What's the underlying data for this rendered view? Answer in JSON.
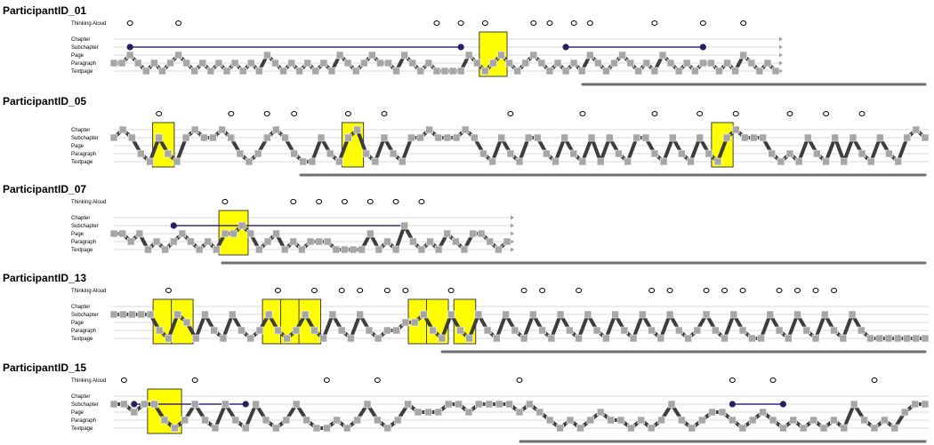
{
  "chart_data": {
    "type": "line",
    "levels": [
      "Thinking Aloud",
      "Chapter",
      "Subchapter",
      "Page",
      "Paragraph",
      "Textpage"
    ],
    "participants": [
      {
        "id": "ParticipantID_01",
        "levels": [
          "Thinking Aloud",
          "Chapter",
          "Subchapter",
          "Page",
          "Paragraph",
          "Textpage"
        ],
        "sequence": [
          3,
          3,
          2,
          3,
          4,
          3,
          4,
          3,
          2,
          3,
          4,
          3,
          4,
          3,
          4,
          3,
          4,
          3,
          4,
          2,
          3,
          4,
          3,
          4,
          3,
          4,
          3,
          4,
          2,
          3,
          4,
          3,
          2,
          3,
          3,
          4,
          2,
          3,
          4,
          3,
          4,
          4,
          4,
          4,
          2,
          3,
          4,
          3,
          2,
          3,
          4,
          3,
          2,
          3,
          4,
          3,
          4,
          3,
          4,
          2,
          3,
          4,
          3,
          2,
          3,
          4,
          3,
          4,
          2,
          3,
          4,
          3,
          4,
          3,
          3,
          4,
          3,
          4,
          2,
          3,
          4,
          3,
          4
        ],
        "highlights": [
          [
            46,
            48
          ]
        ],
        "markers": [
          1,
          2
        ],
        "thinking_aloud_events": [
          2,
          8,
          40,
          43,
          46,
          52,
          54,
          57,
          59,
          67,
          73,
          78
        ],
        "subchapter_spans": [
          [
            2,
            43
          ],
          [
            56,
            73
          ]
        ]
      },
      {
        "id": "ParticipantID_05",
        "levels": [
          "Chapter",
          "Subchapter",
          "Page",
          "Paragraph",
          "Textpage"
        ],
        "sequence": [
          1,
          0,
          1,
          3,
          4,
          1,
          3,
          4,
          1,
          0,
          1,
          1,
          0,
          1,
          3,
          4,
          3,
          1,
          0,
          1,
          3,
          4,
          4,
          1,
          3,
          4,
          1,
          0,
          3,
          4,
          1,
          3,
          4,
          1,
          1,
          0,
          1,
          1,
          1,
          0,
          1,
          3,
          4,
          1,
          3,
          4,
          1,
          1,
          3,
          4,
          1,
          3,
          4,
          1,
          4,
          1,
          3,
          4,
          1,
          1,
          3,
          4,
          1,
          3,
          4,
          1,
          3,
          4,
          1,
          0,
          1,
          1,
          1,
          3,
          4,
          3,
          4,
          1,
          3,
          4,
          1,
          4,
          1,
          3,
          4,
          1,
          3,
          4,
          1,
          0,
          1
        ],
        "highlights": [
          [
            5,
            6
          ],
          [
            26,
            27
          ],
          [
            67,
            68
          ]
        ],
        "markers": [
          0
        ],
        "thinking_aloud_events": [
          5,
          13,
          17,
          20,
          26,
          30,
          44,
          52,
          60,
          65,
          69,
          75,
          79,
          83
        ],
        "subchapter_spans": []
      },
      {
        "id": "ParticipantID_07",
        "levels": [
          "Thinking Aloud",
          "Chapter",
          "Subchapter",
          "Page",
          "Paragraph",
          "Textpage"
        ],
        "sequence": [
          2,
          2,
          3,
          2,
          4,
          3,
          4,
          3,
          2,
          3,
          4,
          3,
          4,
          2,
          2,
          1,
          2,
          4,
          3,
          2,
          4,
          3,
          4,
          3,
          3,
          3,
          4,
          4,
          4,
          4,
          2,
          4,
          3,
          4,
          1,
          3,
          4,
          3,
          4,
          2,
          3,
          4,
          2,
          2,
          3,
          4,
          3
        ],
        "highlights": [
          [
            13,
            15
          ]
        ],
        "markers": [],
        "thinking_aloud_events": [
          13,
          21,
          24,
          27,
          30,
          33,
          36
        ],
        "subchapter_spans": [
          [
            7,
            34
          ]
        ]
      },
      {
        "id": "ParticipantID_13",
        "levels": [
          "Thinking Aloud",
          "Chapter",
          "Subchapter",
          "Page",
          "Paragraph",
          "Textpage"
        ],
        "sequence": [
          1,
          1,
          1,
          1,
          1,
          3,
          4,
          1,
          2,
          4,
          1,
          3,
          4,
          1,
          3,
          4,
          3,
          1,
          3,
          4,
          3,
          1,
          3,
          4,
          1,
          3,
          4,
          1,
          3,
          4,
          3,
          3,
          2,
          2,
          1,
          3,
          4,
          1,
          3,
          4,
          1,
          3,
          4,
          1,
          3,
          4,
          1,
          3,
          4,
          1,
          3,
          4,
          1,
          3,
          4,
          1,
          3,
          4,
          1,
          3,
          4,
          1,
          3,
          4,
          3,
          1,
          3,
          4,
          1,
          3,
          4,
          4,
          1,
          3,
          4,
          1,
          3,
          4,
          1,
          3,
          4,
          1,
          3,
          4,
          4,
          4,
          4,
          4,
          4,
          4
        ],
        "highlights": [
          [
            5,
            6
          ],
          [
            7,
            8
          ],
          [
            17,
            18
          ],
          [
            19,
            20
          ],
          [
            21,
            22
          ],
          [
            33,
            34
          ],
          [
            35,
            36
          ],
          [
            38,
            39
          ]
        ],
        "markers": [],
        "thinking_aloud_events": [
          6,
          18,
          22,
          25,
          27,
          30,
          32,
          37,
          45,
          47,
          51,
          59,
          61,
          65,
          67,
          69,
          73,
          75,
          77,
          79
        ],
        "subchapter_spans": []
      },
      {
        "id": "ParticipantID_15",
        "levels": [
          "Thinking Aloud",
          "Chapter",
          "Subchapter",
          "Page",
          "Paragraph",
          "Textpage"
        ],
        "sequence": [
          1,
          1,
          2,
          1,
          1,
          3,
          4,
          3,
          1,
          3,
          4,
          1,
          3,
          4,
          1,
          3,
          4,
          3,
          1,
          3,
          4,
          4,
          3,
          4,
          3,
          1,
          3,
          4,
          3,
          1,
          2,
          2,
          2,
          1,
          1,
          2,
          1,
          1,
          1,
          1,
          2,
          1,
          2,
          3,
          4,
          3,
          4,
          3,
          2,
          3,
          3,
          4,
          3,
          4,
          3,
          1,
          3,
          4,
          3,
          2,
          2,
          3,
          4,
          3,
          2,
          3,
          4,
          3,
          4,
          3,
          4,
          3,
          4,
          1,
          3,
          4,
          3,
          4,
          2,
          1,
          1
        ],
        "highlights": [
          [
            4,
            6
          ]
        ],
        "markers": [],
        "thinking_aloud_events": [
          1,
          8,
          21,
          26,
          40,
          61,
          65,
          75
        ],
        "subchapter_spans": [
          [
            2,
            13
          ],
          [
            61,
            66
          ]
        ]
      }
    ]
  }
}
